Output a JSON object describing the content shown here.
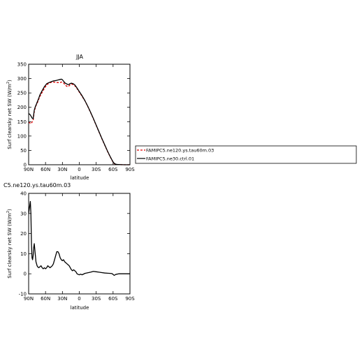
{
  "chart_data": [
    {
      "type": "line",
      "title": "JJA",
      "xlabel": "latitude",
      "ylabel": "Surf clearsky net SW (W/m",
      "ylabel_sup": "2",
      "ylabel_close": ")",
      "xlim": [
        90,
        -90
      ],
      "ylim": [
        0,
        350
      ],
      "x_ticks": [
        90,
        60,
        30,
        0,
        -30,
        -60,
        -90
      ],
      "x_tick_labels": [
        "90N",
        "60N",
        "30N",
        "0",
        "30S",
        "60S",
        "90S"
      ],
      "y_ticks": [
        0,
        50,
        100,
        150,
        200,
        250,
        300,
        350
      ],
      "y_tick_labels": [
        "0",
        "50",
        "100",
        "150",
        "200",
        "250",
        "300",
        "350"
      ],
      "legend_placement": "right",
      "series": [
        {
          "name": "FAMIPC5.ne120.ys.tau60m.03",
          "color": "#e00000",
          "dash": "dashed",
          "x": [
            90,
            88,
            86,
            84,
            82,
            80,
            78,
            76,
            74,
            72,
            70,
            66,
            62,
            58,
            54,
            50,
            46,
            42,
            38,
            34,
            32,
            30,
            28,
            26,
            24,
            22,
            20,
            18,
            16,
            14,
            12,
            10,
            8,
            5,
            0,
            -5,
            -10,
            -15,
            -20,
            -25,
            -30,
            -35,
            -40,
            -45,
            -50,
            -55,
            -58,
            -60,
            -62,
            -64,
            -66,
            -70,
            -75,
            -80,
            -85,
            -90
          ],
          "values": [
            148,
            146,
            143,
            148,
            155,
            185,
            200,
            210,
            218,
            228,
            238,
            252,
            266,
            278,
            284,
            287,
            288,
            287,
            286,
            286,
            288,
            287,
            285,
            280,
            276,
            273,
            272,
            275,
            279,
            281,
            280,
            278,
            275,
            268,
            253,
            238,
            223,
            203,
            182,
            160,
            137,
            114,
            91,
            69,
            47,
            27,
            16,
            9,
            4,
            2,
            1,
            0.5,
            0.2,
            0,
            0,
            0
          ]
        },
        {
          "name": "FAMIPC5.ne30.ctrl.01",
          "color": "#000000",
          "dash": "solid",
          "x": [
            90,
            88,
            86,
            84,
            82,
            80,
            78,
            76,
            74,
            72,
            70,
            66,
            62,
            58,
            54,
            50,
            46,
            42,
            38,
            34,
            32,
            30,
            28,
            26,
            24,
            22,
            20,
            18,
            16,
            14,
            12,
            10,
            8,
            5,
            0,
            -5,
            -10,
            -15,
            -20,
            -25,
            -30,
            -35,
            -40,
            -45,
            -50,
            -55,
            -58,
            -60,
            -62,
            -64,
            -66,
            -70,
            -75,
            -80,
            -85,
            -90
          ],
          "values": [
            178,
            176,
            170,
            163,
            160,
            190,
            203,
            212,
            222,
            232,
            243,
            258,
            272,
            282,
            286,
            289,
            292,
            293,
            295,
            297,
            298,
            296,
            291,
            286,
            283,
            281,
            279,
            280,
            283,
            284,
            283,
            281,
            278,
            270,
            255,
            240,
            223,
            204,
            183,
            161,
            138,
            115,
            92,
            70,
            48,
            28,
            17,
            10,
            5,
            2.5,
            1.5,
            0.7,
            0.3,
            0,
            0,
            0
          ]
        }
      ]
    },
    {
      "type": "line",
      "title": "",
      "title_fragment": "C5.ne120.ys.tau60m.03",
      "xlabel": "latitude",
      "ylabel": "Surf clearsky net SW (W/m",
      "ylabel_sup": "2",
      "ylabel_close": ")",
      "xlim": [
        90,
        -90
      ],
      "ylim": [
        -10,
        40
      ],
      "x_ticks": [
        90,
        60,
        30,
        0,
        -30,
        -60,
        -90
      ],
      "x_tick_labels": [
        "90N",
        "60N",
        "30N",
        "0",
        "30S",
        "60S",
        "90S"
      ],
      "y_ticks": [
        -10,
        0,
        10,
        20,
        30,
        40
      ],
      "y_tick_labels": [
        "-10",
        "0",
        "10",
        "20",
        "30",
        "40"
      ],
      "series": [
        {
          "color": "#000000",
          "dash": "solid",
          "x": [
            90,
            89,
            88,
            87,
            86,
            85,
            84,
            83,
            82,
            81,
            80,
            79,
            78,
            77,
            76,
            75,
            74,
            72,
            70,
            68,
            66,
            64,
            62,
            60,
            58,
            56,
            54,
            52,
            50,
            48,
            46,
            44,
            42,
            40,
            38,
            36,
            34,
            32,
            30,
            28,
            26,
            24,
            22,
            20,
            18,
            16,
            14,
            12,
            10,
            8,
            6,
            4,
            2,
            0,
            -2,
            -5,
            -10,
            -15,
            -20,
            -25,
            -30,
            -35,
            -40,
            -45,
            -50,
            -55,
            -58,
            -60,
            -62,
            -65,
            -70,
            -75,
            -80,
            -85,
            -90
          ],
          "values": [
            30,
            32,
            34,
            36,
            30,
            15,
            8,
            7,
            9,
            13,
            15,
            12,
            9,
            6,
            5,
            4,
            3.5,
            3,
            3.5,
            4,
            3,
            2.5,
            3,
            2.5,
            3,
            4,
            3.5,
            3,
            3.5,
            4,
            5,
            7,
            9,
            11,
            11,
            10,
            8,
            7,
            6.5,
            7,
            6,
            5.5,
            5,
            4.5,
            4,
            3,
            2,
            1.5,
            2,
            1.5,
            1,
            0,
            -0.3,
            -0.5,
            -0.2,
            -0.5,
            0.2,
            0.5,
            0.8,
            1.2,
            1.0,
            0.8,
            0.6,
            0.4,
            0.3,
            0.2,
            0.1,
            -0.3,
            -0.8,
            -0.3,
            0,
            0,
            0,
            0,
            0
          ]
        }
      ]
    }
  ]
}
